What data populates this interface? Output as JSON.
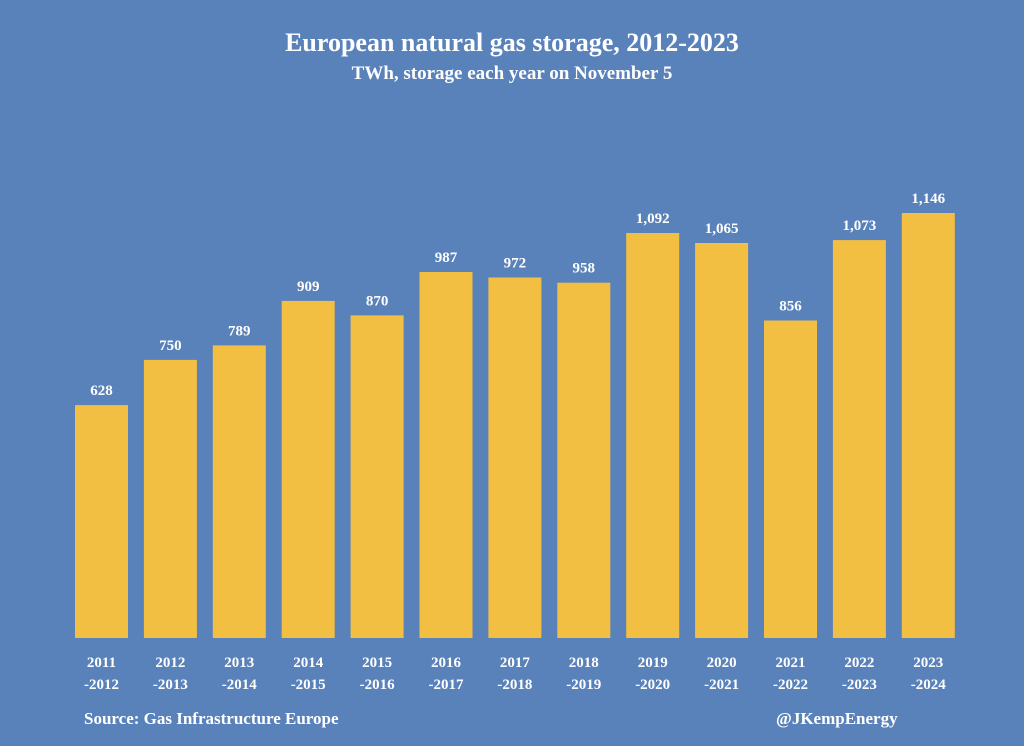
{
  "chart_data": {
    "type": "bar",
    "title": "European natural gas storage, 2012-2023",
    "subtitle": "TWh, storage each year on November 5",
    "xlabel": "",
    "ylabel": "",
    "ylim": [
      0,
      1146
    ],
    "grid": false,
    "legend": "none",
    "bar_color": "#f3bf42",
    "background_color": "#5a82ba",
    "categories": [
      [
        "2011",
        "-2012"
      ],
      [
        "2012",
        "-2013"
      ],
      [
        "2013",
        "-2014"
      ],
      [
        "2014",
        "-2015"
      ],
      [
        "2015",
        "-2016"
      ],
      [
        "2016",
        "-2017"
      ],
      [
        "2017",
        "-2018"
      ],
      [
        "2018",
        "-2019"
      ],
      [
        "2019",
        "-2020"
      ],
      [
        "2020",
        "-2021"
      ],
      [
        "2021",
        "-2022"
      ],
      [
        "2022",
        "-2023"
      ],
      [
        "2023",
        "-2024"
      ]
    ],
    "values": [
      628,
      750,
      789,
      909,
      870,
      987,
      972,
      958,
      1092,
      1065,
      856,
      1073,
      1146
    ],
    "value_labels": [
      "628",
      "750",
      "789",
      "909",
      "870",
      "987",
      "972",
      "958",
      "1,092",
      "1,065",
      "856",
      "1,073",
      "1,146"
    ]
  },
  "footer": {
    "source": "Source: Gas Infrastructure Europe",
    "handle": "@JKempEnergy"
  }
}
